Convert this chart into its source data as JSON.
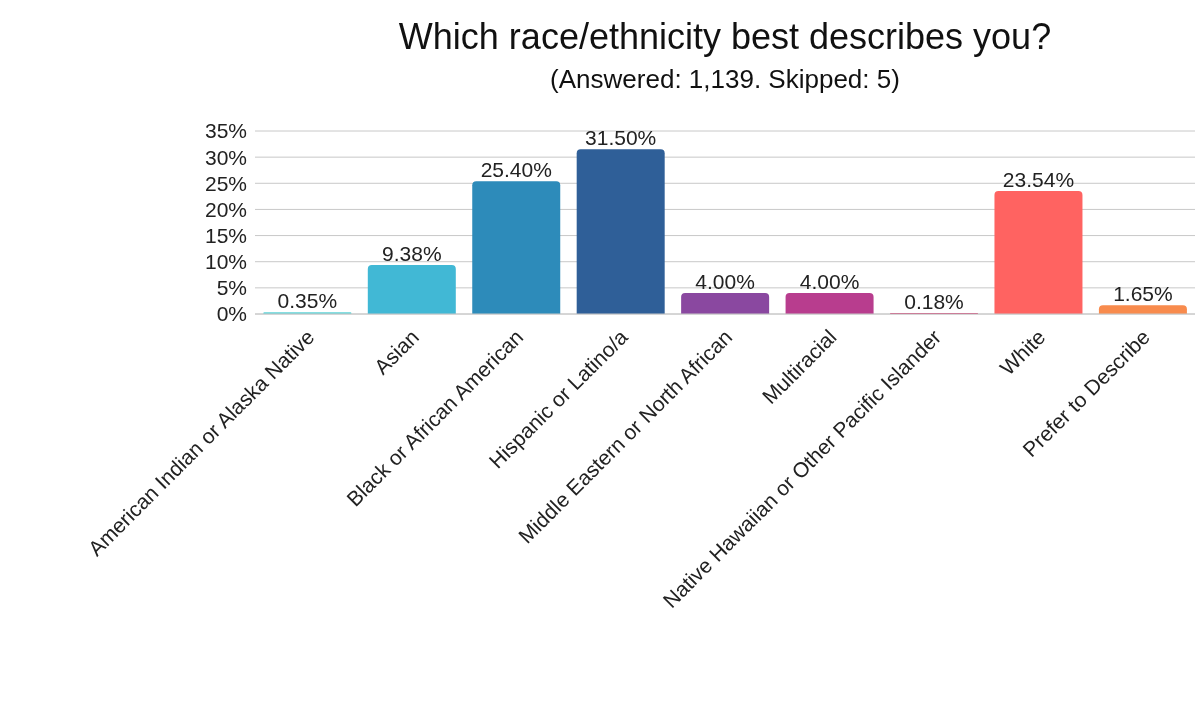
{
  "chart_data": {
    "type": "bar",
    "title": "Which race/ethnicity best describes you?",
    "subtitle": "(Answered: 1,139. Skipped: 5)",
    "categories": [
      "American Indian or Alaska Native",
      "Asian",
      "Black or African American",
      "Hispanic or Latino/a",
      "Middle Eastern or North African",
      "Multiracial",
      "Native Hawaiian or Other Pacific Islander",
      "White",
      "Prefer to Describe"
    ],
    "values": [
      0.35,
      9.38,
      25.4,
      31.5,
      4.0,
      4.0,
      0.18,
      23.54,
      1.65
    ],
    "value_labels": [
      "0.35%",
      "9.38%",
      "25.40%",
      "31.50%",
      "4.00%",
      "4.00%",
      "0.18%",
      "23.54%",
      "1.65%"
    ],
    "colors": [
      "#5fd3d8",
      "#41b8d5",
      "#2d8bba",
      "#2f5f98",
      "#8a48a0",
      "#b83d8e",
      "#d0326a",
      "#ff6361",
      "#f88b4d"
    ],
    "ylim": [
      0,
      35
    ],
    "yticks": [
      {
        "value": 0,
        "label": "0%"
      },
      {
        "value": 5,
        "label": "5%"
      },
      {
        "value": 10,
        "label": "10%"
      },
      {
        "value": 15,
        "label": "15%"
      },
      {
        "value": 20,
        "label": "20%"
      },
      {
        "value": 25,
        "label": "25%"
      },
      {
        "value": 30,
        "label": "30%"
      },
      {
        "value": 35,
        "label": "35%"
      }
    ],
    "grid": "y"
  }
}
